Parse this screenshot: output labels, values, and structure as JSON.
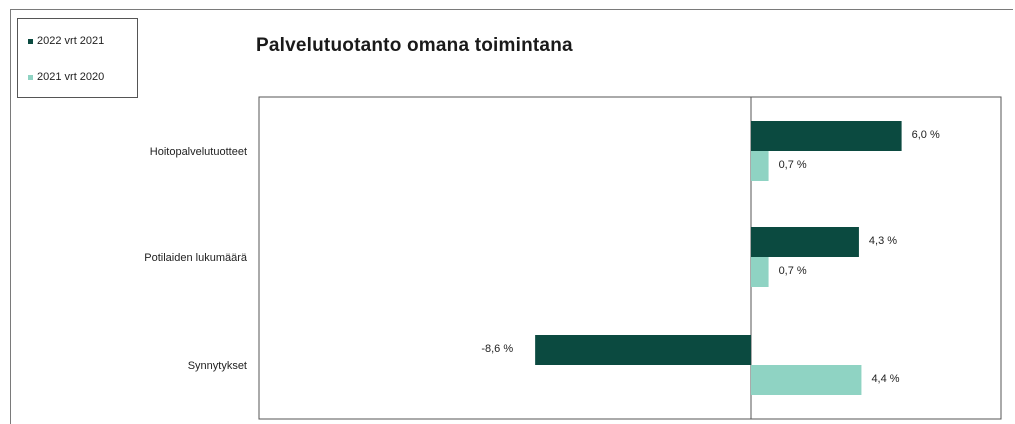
{
  "chart_data": {
    "type": "bar",
    "orientation": "horizontal",
    "title": "Palvelutuotanto omana toimintana",
    "categories": [
      "Hoitopalvelutuotteet",
      "Potilaiden lukumäärä",
      "Synnytykset"
    ],
    "series": [
      {
        "name": "2022 vrt 2021",
        "color": "#0b4a40",
        "values": [
          6.0,
          4.3,
          -8.6
        ],
        "labels": [
          "6,0 %",
          "4,3 %",
          "-8,6 %"
        ]
      },
      {
        "name": "2021 vrt 2020",
        "color": "#8fd3c3",
        "values": [
          0.7,
          0.7,
          4.4
        ],
        "labels": [
          "0,7 %",
          "0,7 %",
          "4,4 %"
        ]
      }
    ],
    "xlim": [
      -20,
      10
    ],
    "grid": false,
    "legend": "top-left"
  }
}
